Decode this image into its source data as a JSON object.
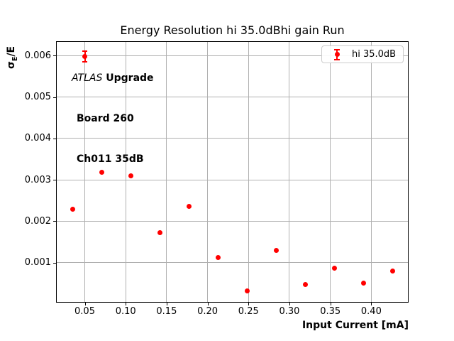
{
  "chart_data": {
    "type": "scatter",
    "title": "Energy Resolution hi 35.0dBhi gain Run",
    "xlabel": "Input Current [mA]",
    "ylabel": {
      "prefix": "σ",
      "subscript": "E",
      "suffix": "/E"
    },
    "xlim": [
      0.0149,
      0.4456
    ],
    "ylim": [
      3e-05,
      0.00635
    ],
    "grid": true,
    "legend_position": "upper right",
    "colors": {
      "marker": "#ff0000",
      "grid": "#b0b0b0",
      "axis": "#000000",
      "legend_border": "#cccccc",
      "background": "#ffffff"
    },
    "xticks": [
      {
        "v": 0.05,
        "label": "0.05"
      },
      {
        "v": 0.1,
        "label": "0.10"
      },
      {
        "v": 0.15,
        "label": "0.15"
      },
      {
        "v": 0.2,
        "label": "0.20"
      },
      {
        "v": 0.25,
        "label": "0.25"
      },
      {
        "v": 0.3,
        "label": "0.30"
      },
      {
        "v": 0.35,
        "label": "0.35"
      },
      {
        "v": 0.4,
        "label": "0.40"
      }
    ],
    "yticks": [
      {
        "v": 0.001,
        "label": "0.001"
      },
      {
        "v": 0.002,
        "label": "0.002"
      },
      {
        "v": 0.003,
        "label": "0.003"
      },
      {
        "v": 0.004,
        "label": "0.004"
      },
      {
        "v": 0.005,
        "label": "0.005"
      },
      {
        "v": 0.006,
        "label": "0.006"
      }
    ],
    "series": [
      {
        "name": "hi 35.0dB",
        "color": "#ff0000",
        "marker": "circle",
        "points": [
          {
            "x": 0.0355,
            "y": 0.00228
          },
          {
            "x": 0.05,
            "y": 0.00598,
            "yerr": 0.00013
          },
          {
            "x": 0.071,
            "y": 0.00318
          },
          {
            "x": 0.1065,
            "y": 0.0031
          },
          {
            "x": 0.142,
            "y": 0.00173
          },
          {
            "x": 0.1775,
            "y": 0.00235
          },
          {
            "x": 0.213,
            "y": 0.00112
          },
          {
            "x": 0.2485,
            "y": 0.00032
          },
          {
            "x": 0.284,
            "y": 0.0013
          },
          {
            "x": 0.3195,
            "y": 0.00047
          },
          {
            "x": 0.355,
            "y": 0.00086
          },
          {
            "x": 0.3905,
            "y": 0.0005
          },
          {
            "x": 0.426,
            "y": 0.00079
          }
        ]
      }
    ],
    "legend": {
      "label": "hi 35.0dB"
    },
    "annotation": {
      "line1_italic": "ATLAS",
      "line1_bold": " Upgrade",
      "line2": "Board 260",
      "line3": "Ch011 35dB"
    }
  }
}
